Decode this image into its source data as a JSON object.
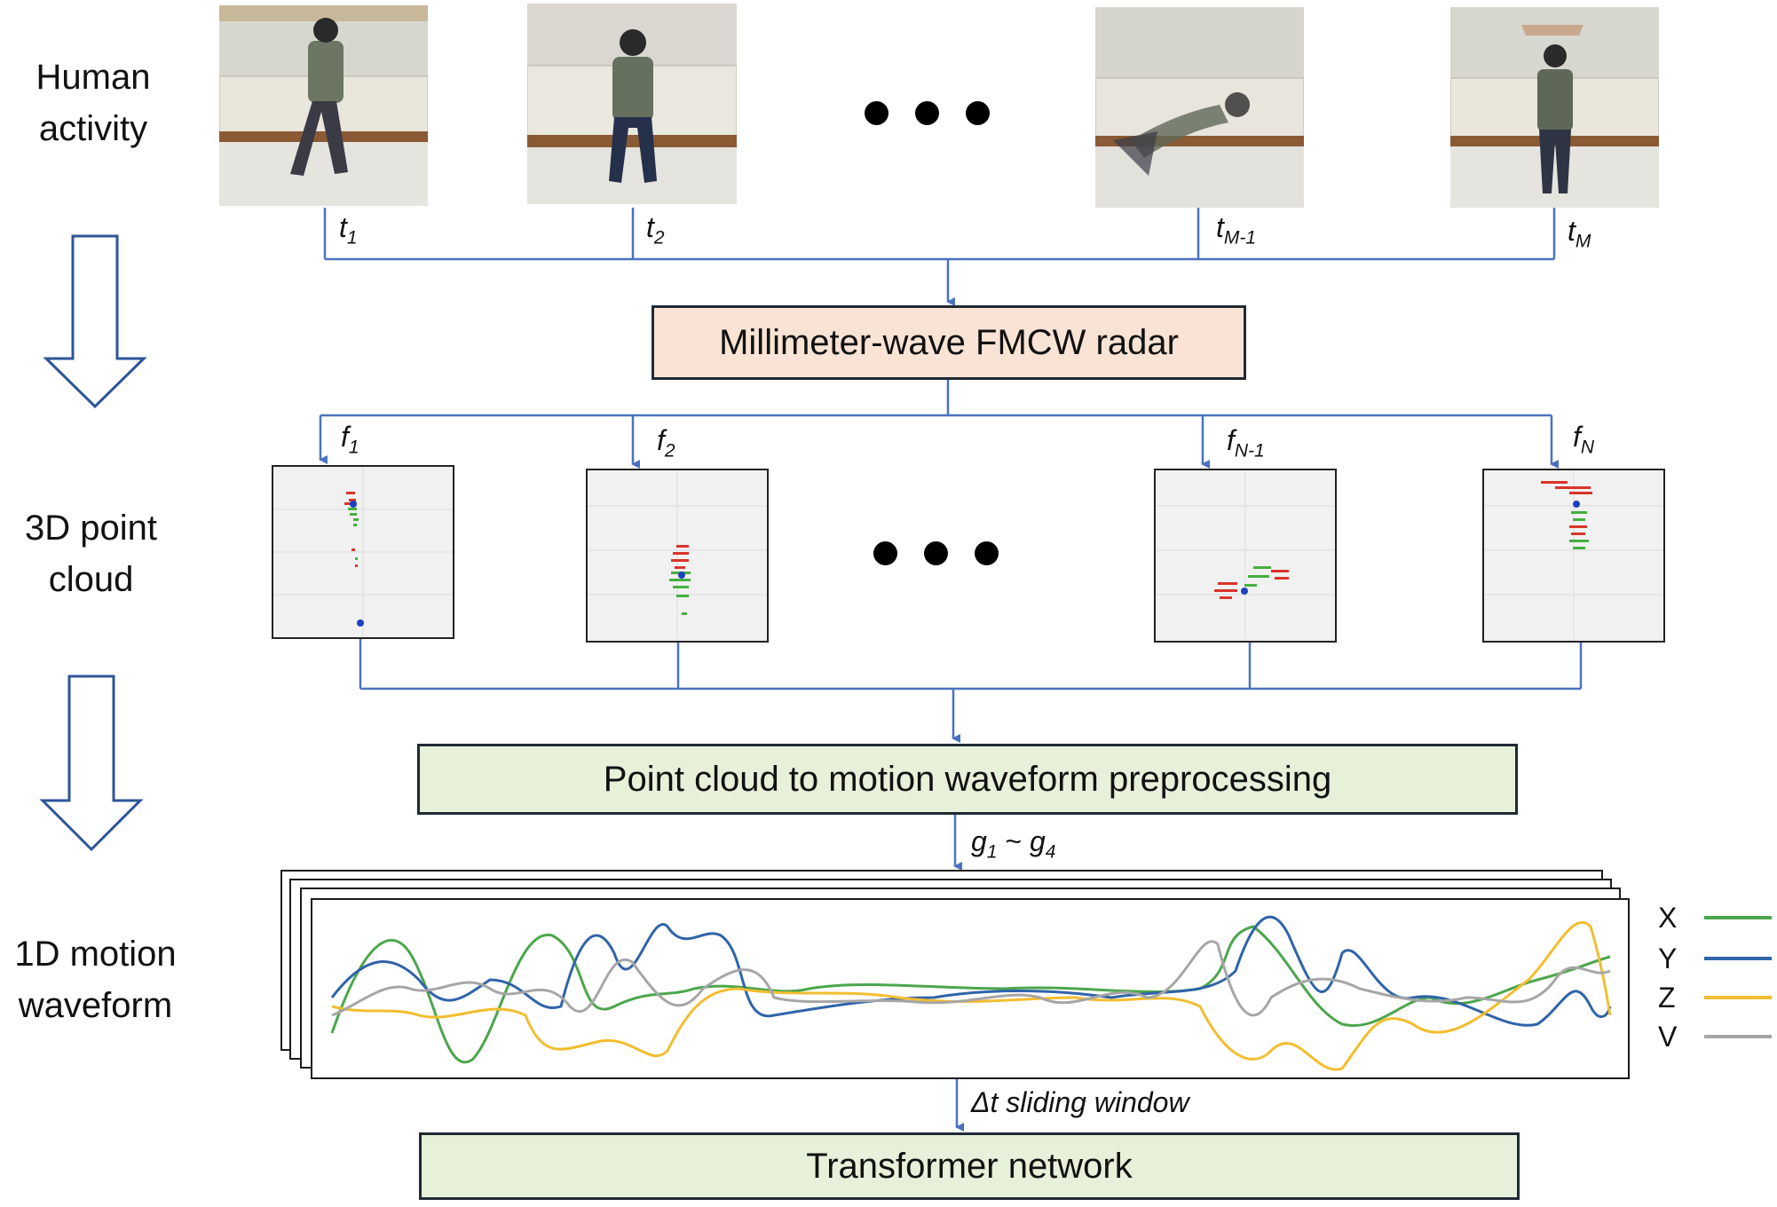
{
  "stages": {
    "activity": [
      "Human",
      "activity"
    ],
    "pointcloud": [
      "3D point",
      "cloud"
    ],
    "waveform": [
      "1D motion",
      "waveform"
    ]
  },
  "time_labels": [
    {
      "base": "t",
      "sub": "1"
    },
    {
      "base": "t",
      "sub": "2"
    },
    {
      "base": "t",
      "sub": "M-1"
    },
    {
      "base": "t",
      "sub": "M"
    }
  ],
  "frame_labels": [
    {
      "base": "f",
      "sub": "1"
    },
    {
      "base": "f",
      "sub": "2"
    },
    {
      "base": "f",
      "sub": "N-1"
    },
    {
      "base": "f",
      "sub": "N"
    }
  ],
  "radar_box": "Millimeter-wave FMCW radar",
  "preprocess_box": "Point cloud to motion waveform preprocessing",
  "transformer_box": "Transformer network",
  "edge_g": {
    "a": "g",
    "a_sub": "1",
    "tilde": " ~ ",
    "b": "g",
    "b_sub": "4"
  },
  "edge_window": "Δt sliding window",
  "legend": [
    {
      "label": "X",
      "color": "#4ca64c"
    },
    {
      "label": "Y",
      "color": "#2f64a8"
    },
    {
      "label": "Z",
      "color": "#f2bd2f"
    },
    {
      "label": "V",
      "color": "#a6a6a6"
    }
  ],
  "colors": {
    "arrow": "#4a72c0",
    "radar_fill": "#f9e3d4",
    "green_fill": "#e7f0d9",
    "hollow_arrow": "#2e5597"
  }
}
